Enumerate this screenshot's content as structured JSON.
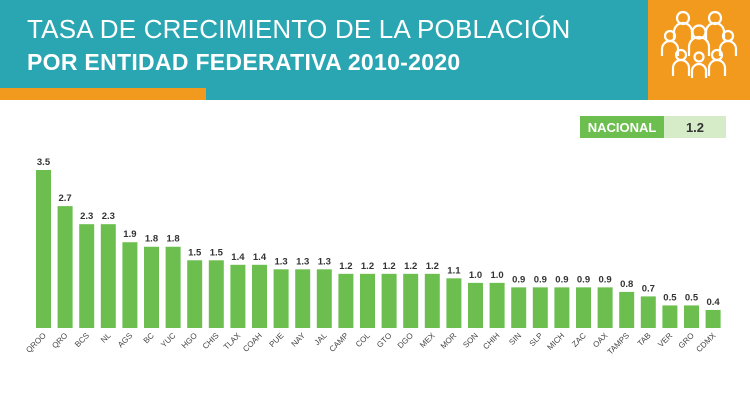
{
  "header": {
    "title_line1": "TASA DE CRECIMIENTO DE LA POBLACIÓN",
    "title_line2": "POR ENTIDAD FEDERATIVA 2010-2020",
    "logo_icon": "population-group-icon"
  },
  "nacional": {
    "label": "NACIONAL",
    "value": "1.2"
  },
  "colors": {
    "header": "#2aa6b2",
    "accent": "#f29a1e",
    "bar": "#6cbf4f",
    "nacional_value_bg": "#d6ecc8"
  },
  "chart_data": {
    "type": "bar",
    "categories": [
      "QROO",
      "QRO",
      "BCS",
      "NL",
      "AGS",
      "BC",
      "YUC",
      "HGO",
      "CHIS",
      "TLAX",
      "COAH",
      "PUE",
      "NAY",
      "JAL",
      "CAMP",
      "COL",
      "GTO",
      "DGO",
      "MEX",
      "MOR",
      "SON",
      "CHIH",
      "SIN",
      "SLP",
      "MICH",
      "ZAC",
      "OAX",
      "TAMPS",
      "TAB",
      "VER",
      "GRO",
      "CDMX"
    ],
    "values": [
      3.5,
      2.7,
      2.3,
      2.3,
      1.9,
      1.8,
      1.8,
      1.5,
      1.5,
      1.4,
      1.4,
      1.3,
      1.3,
      1.3,
      1.2,
      1.2,
      1.2,
      1.2,
      1.2,
      1.1,
      1.0,
      1.0,
      0.9,
      0.9,
      0.9,
      0.9,
      0.9,
      0.8,
      0.7,
      0.5,
      0.5,
      0.4
    ],
    "title": "TASA DE CRECIMIENTO DE LA POBLACIÓN POR ENTIDAD FEDERATIVA 2010-2020",
    "xlabel": "",
    "ylabel": "",
    "ylim": [
      0,
      3.5
    ],
    "grid": false,
    "legend": "none"
  }
}
